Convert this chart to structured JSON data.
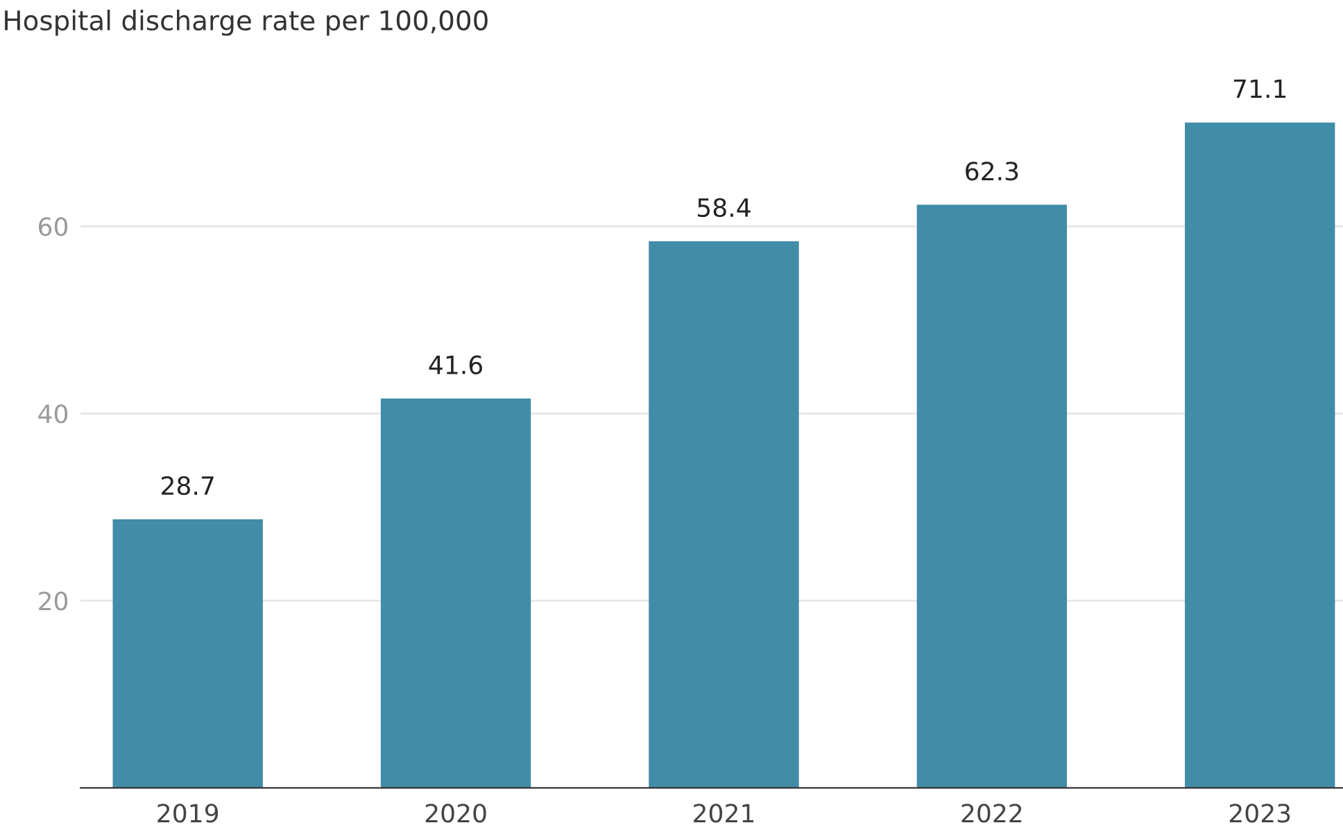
{
  "chart_data": {
    "type": "bar",
    "ylabel": "Hospital discharge rate per 100,000",
    "categories": [
      "2019",
      "2020",
      "2021",
      "2022",
      "2023"
    ],
    "values": [
      28.7,
      41.6,
      58.4,
      62.3,
      71.1
    ],
    "color": "#418ca7",
    "ylim": [
      0,
      71.1
    ],
    "yticks": [
      20,
      40,
      60
    ],
    "grid": "y",
    "data_labels": true,
    "legend": false
  }
}
